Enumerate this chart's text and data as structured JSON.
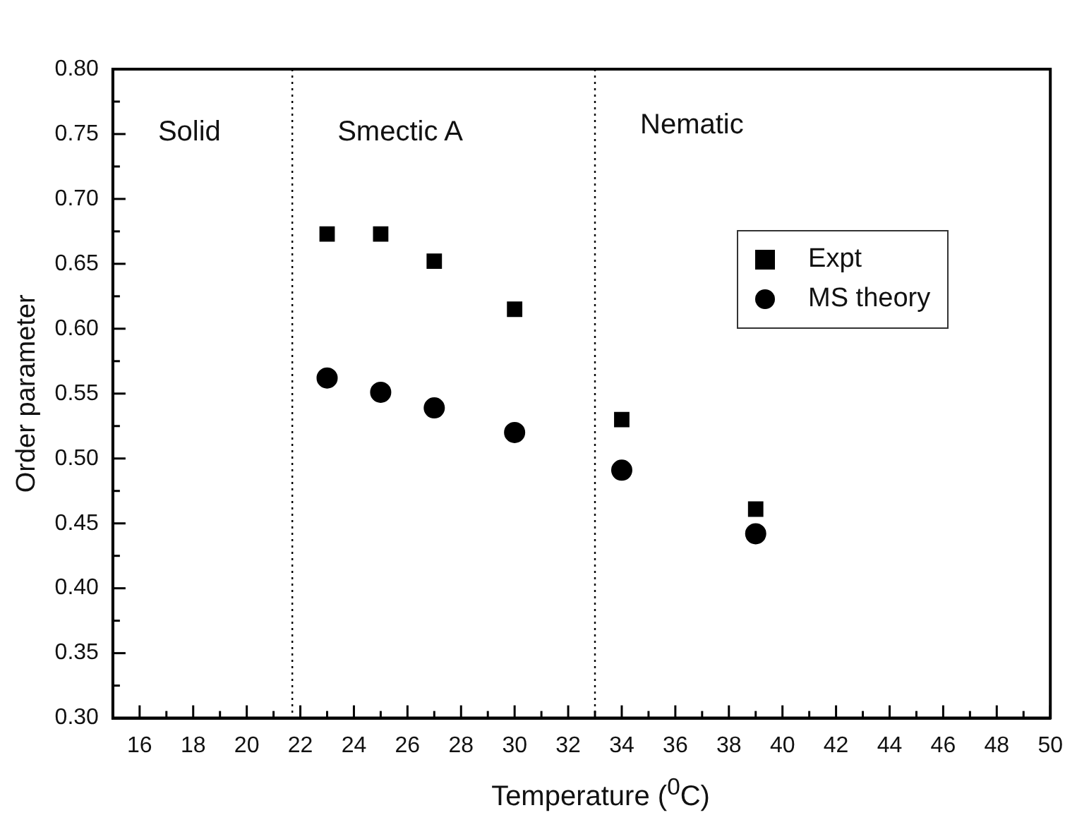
{
  "chart_data": {
    "type": "scatter",
    "xlabel": "Temperature ($^{0}$C)",
    "ylabel": "Order parameter",
    "xlim": [
      15,
      50
    ],
    "xticks": [
      16,
      18,
      20,
      22,
      24,
      26,
      28,
      30,
      32,
      34,
      36,
      38,
      40,
      42,
      44,
      46,
      48,
      50
    ],
    "ylim": [
      0.3,
      0.8
    ],
    "yticks": [
      {
        "value": 0.3,
        "label": "0.30"
      },
      {
        "value": 0.35,
        "label": "0.35"
      },
      {
        "value": 0.4,
        "label": "0.40"
      },
      {
        "value": 0.45,
        "label": "0.45"
      },
      {
        "value": 0.5,
        "label": "0.50"
      },
      {
        "value": 0.55,
        "label": "0.55"
      },
      {
        "value": 0.6,
        "label": "0.60"
      },
      {
        "value": 0.65,
        "label": "0.65"
      },
      {
        "value": 0.7,
        "label": "0.70"
      },
      {
        "value": 0.75,
        "label": "0.75"
      },
      {
        "value": 0.8,
        "label": "0.80"
      }
    ],
    "series": [
      {
        "name": "Expt",
        "color": "#000000",
        "marker": "square",
        "x": [
          23,
          25,
          27,
          30,
          34,
          39
        ],
        "values": [
          0.673,
          0.673,
          0.652,
          0.615,
          0.53,
          0.461
        ]
      },
      {
        "name": "MS theory",
        "color": "#000000",
        "marker": "circle",
        "x": [
          23,
          25,
          27,
          30,
          34,
          39
        ],
        "values": [
          0.562,
          0.551,
          0.539,
          0.52,
          0.491,
          0.442
        ]
      }
    ],
    "ref_lines": [
      {
        "axis": "x",
        "value": 21.7,
        "color": "#000000",
        "line_style": "dotted"
      },
      {
        "axis": "x",
        "value": 33,
        "color": "#000000",
        "line_style": "dotted"
      }
    ],
    "annotations": [
      "Solid",
      "Smectic A",
      "Nematic"
    ],
    "legend": "top right",
    "grid": false
  }
}
